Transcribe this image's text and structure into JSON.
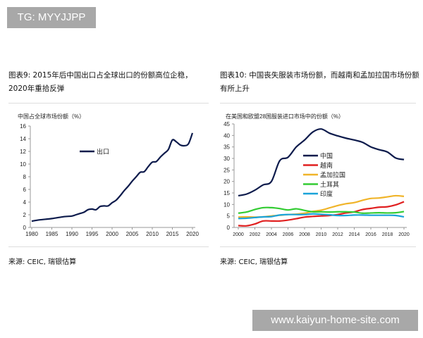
{
  "watermarks": {
    "top_left": "TG: MYYJJPP",
    "bottom_right": "www.kaiyun-home-site.com"
  },
  "chart_data": [
    {
      "type": "line",
      "title": "图表9: 2015年后中国出口占全球出口的份额高位企稳，2020年重拾反弹",
      "ylabel": "中国占全球市场份额（%）",
      "source": "来源: CEIC, 瑞银估算",
      "xlim": [
        1980,
        2020
      ],
      "ylim": [
        0,
        16
      ],
      "x_ticks": [
        "1980",
        "1985",
        "1990",
        "1995",
        "2000",
        "2005",
        "2010",
        "2015",
        "2020"
      ],
      "y_ticks": [
        "0",
        "2",
        "4",
        "6",
        "8",
        "10",
        "12",
        "14",
        "16"
      ],
      "grid": false,
      "legend": "upper-left-center",
      "x": [
        1980,
        1982,
        1985,
        1988,
        1990,
        1991,
        1992,
        1993,
        1994,
        1995,
        1996,
        1997,
        1998,
        1999,
        2000,
        2001,
        2002,
        2003,
        2004,
        2005,
        2006,
        2007,
        2008,
        2009,
        2010,
        2011,
        2012,
        2013,
        2014,
        2015,
        2016,
        2017,
        2018,
        2019,
        2020
      ],
      "series": [
        {
          "name": "出口",
          "color": "#0d1b4c",
          "values": [
            1.0,
            1.2,
            1.4,
            1.7,
            1.8,
            2.0,
            2.2,
            2.4,
            2.8,
            2.9,
            2.8,
            3.3,
            3.4,
            3.4,
            3.9,
            4.3,
            5.0,
            5.8,
            6.5,
            7.3,
            8.0,
            8.7,
            8.8,
            9.6,
            10.3,
            10.4,
            11.1,
            11.7,
            12.3,
            13.8,
            13.5,
            13.0,
            12.9,
            13.2,
            14.9
          ]
        }
      ]
    },
    {
      "type": "line",
      "title": "图表10: 中国丧失服装市场份额，而越南和孟加拉国市场份额有所上升",
      "ylabel": "在美国和欧盟28国服装进口市场中的份额（%）",
      "source": "来源: CEIC, 瑞银估算",
      "xlim": [
        2000,
        2020
      ],
      "ylim": [
        0,
        45
      ],
      "x_ticks": [
        "2000",
        "2002",
        "2004",
        "2006",
        "2008",
        "2010",
        "2012",
        "2014",
        "2016",
        "2018",
        "2020"
      ],
      "y_ticks": [
        "0",
        "5",
        "10",
        "15",
        "20",
        "25",
        "30",
        "35",
        "40",
        "45"
      ],
      "grid": false,
      "legend": "center",
      "x": [
        2000,
        2001,
        2002,
        2003,
        2004,
        2005,
        2006,
        2007,
        2008,
        2009,
        2010,
        2011,
        2012,
        2013,
        2014,
        2015,
        2016,
        2017,
        2018,
        2019,
        2020
      ],
      "series": [
        {
          "name": "中国",
          "color": "#0d1b4c",
          "values": [
            13.8,
            14.5,
            16.2,
            18.5,
            20,
            29,
            30.5,
            35,
            38,
            41.5,
            42.8,
            41,
            39.8,
            38.8,
            38,
            37,
            35,
            33.8,
            32.8,
            30.2,
            29.5
          ]
        },
        {
          "name": "越南",
          "color": "#e02020",
          "values": [
            0.8,
            0.7,
            1.5,
            2.8,
            2.8,
            2.8,
            3.2,
            3.8,
            4.5,
            4.8,
            5.0,
            5.2,
            5.6,
            6.3,
            6.8,
            7.8,
            8.3,
            8.8,
            9.0,
            9.8,
            11.2
          ]
        },
        {
          "name": "孟加拉国",
          "color": "#f0b429",
          "values": [
            4.5,
            4.6,
            4.5,
            4.6,
            5.0,
            5.3,
            5.6,
            5.8,
            6.2,
            7.0,
            7.5,
            8.5,
            9.5,
            10.3,
            10.8,
            11.8,
            12.6,
            12.8,
            13.3,
            13.8,
            13.5
          ]
        },
        {
          "name": "土耳其",
          "color": "#33cc33",
          "values": [
            6.2,
            6.7,
            7.8,
            8.6,
            8.6,
            8.2,
            7.6,
            8.1,
            7.4,
            6.8,
            6.8,
            6.7,
            6.8,
            6.8,
            6.7,
            6.2,
            6.3,
            6.4,
            6.3,
            6.4,
            6.9
          ]
        },
        {
          "name": "印度",
          "color": "#1aa3d9",
          "values": [
            3.9,
            4.0,
            4.3,
            4.6,
            4.7,
            5.4,
            5.6,
            5.6,
            5.6,
            5.9,
            5.7,
            5.5,
            5.2,
            5.2,
            5.4,
            5.4,
            5.3,
            5.3,
            5.3,
            5.2,
            4.6
          ]
        }
      ]
    }
  ]
}
